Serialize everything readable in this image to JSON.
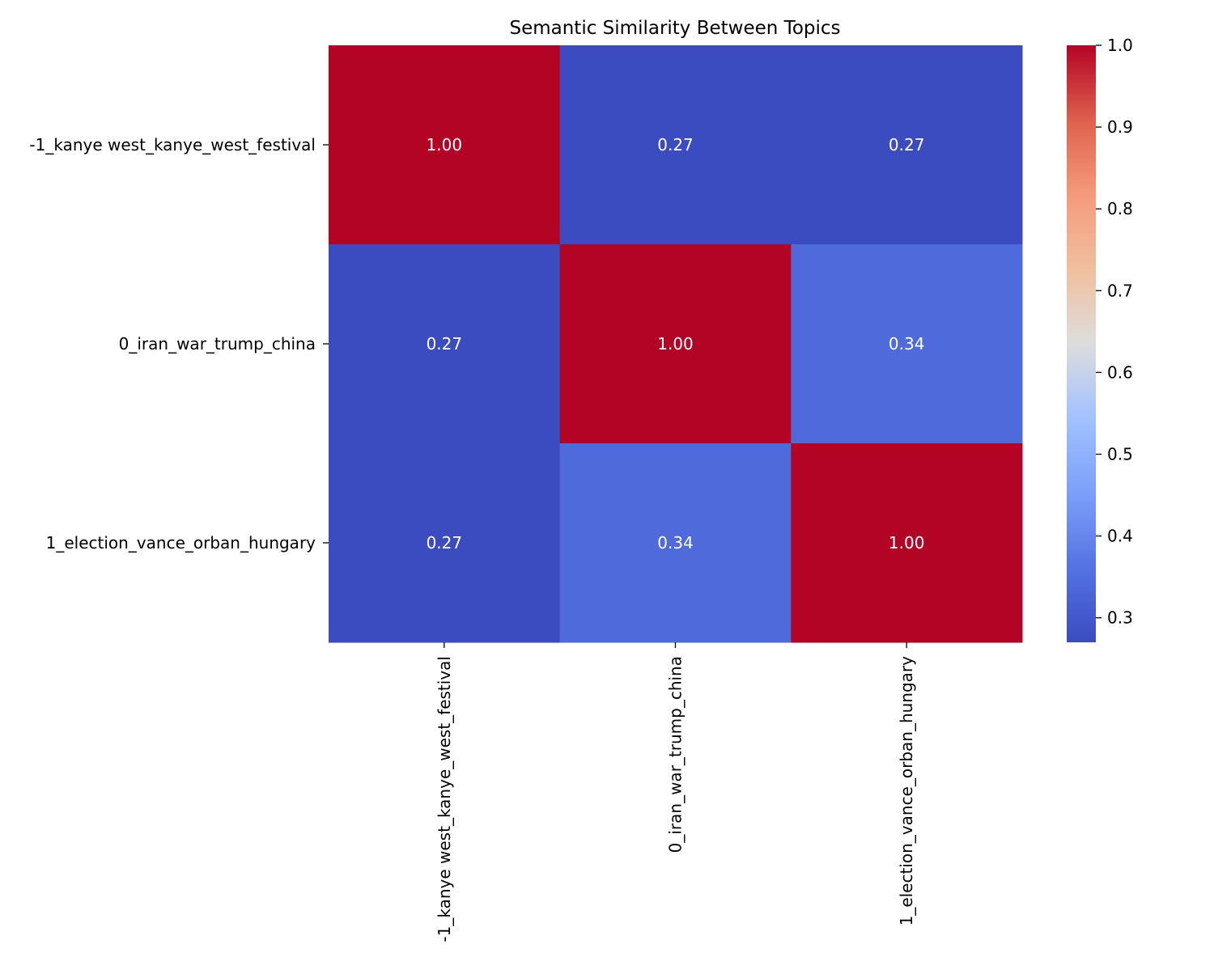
{
  "chart_data": {
    "type": "heatmap",
    "title": "Semantic Similarity Between Topics",
    "xlabel": "",
    "ylabel": "",
    "row_labels": [
      "-1_kanye west_kanye_west_festival",
      "0_iran_war_trump_china",
      "1_election_vance_orban_hungary"
    ],
    "col_labels": [
      "-1_kanye west_kanye_west_festival",
      "0_iran_war_trump_china",
      "1_election_vance_orban_hungary"
    ],
    "values": [
      [
        1.0,
        0.27,
        0.27
      ],
      [
        0.27,
        1.0,
        0.34
      ],
      [
        0.27,
        0.34,
        1.0
      ]
    ],
    "value_format": "0.00",
    "colormap": "coolwarm",
    "colorbar": {
      "range": [
        0.27,
        1.0
      ],
      "ticks": [
        0.3,
        0.4,
        0.5,
        0.6,
        0.7,
        0.8,
        0.9,
        1.0
      ],
      "tick_labels": [
        "0.3",
        "0.4",
        "0.5",
        "0.6",
        "0.7",
        "0.8",
        "0.9",
        "1.0"
      ],
      "placement": "right"
    },
    "grid": false,
    "annotation_color": "#ffffff"
  }
}
